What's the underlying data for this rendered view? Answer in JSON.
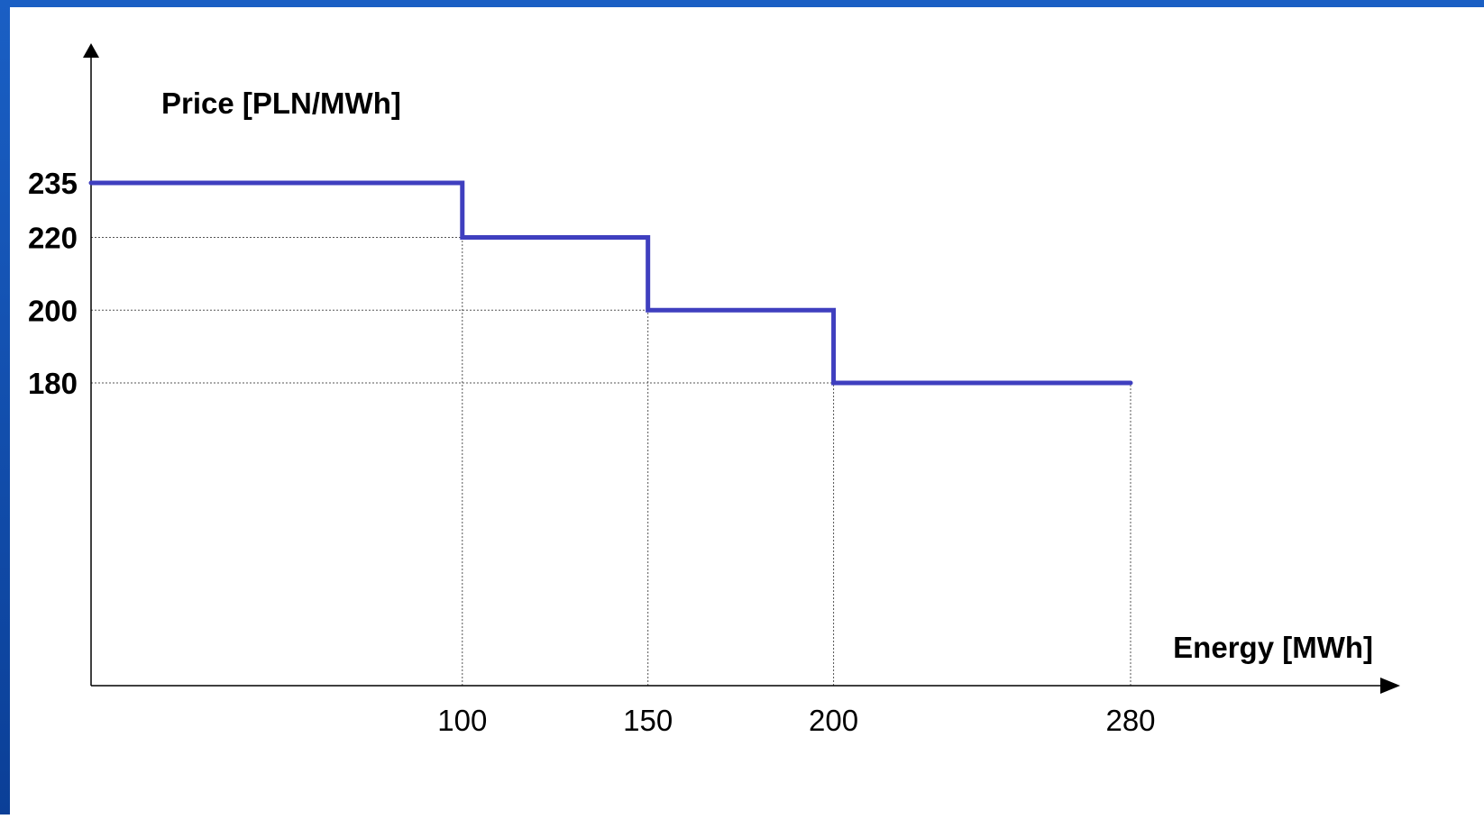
{
  "colors": {
    "frame": "#1554b8",
    "background": "#ffffff",
    "step_line": "#3f3fbf",
    "axis": "#000000",
    "grid": "#555555"
  },
  "chart_data": {
    "type": "line",
    "step": true,
    "title": "",
    "ylabel": "Price [PLN/MWh]",
    "xlabel": "Energy [MWh]",
    "xlim": [
      0,
      330
    ],
    "ylim": [
      0,
      255
    ],
    "x_ticks": [
      100,
      150,
      200,
      280
    ],
    "y_ticks": [
      235,
      220,
      200,
      180
    ],
    "grid": "dotted guide lines at tick values",
    "series": [
      {
        "points": [
          {
            "x": 0,
            "y": 235
          },
          {
            "x": 100,
            "y": 235
          },
          {
            "x": 100,
            "y": 220
          },
          {
            "x": 150,
            "y": 220
          },
          {
            "x": 150,
            "y": 200
          },
          {
            "x": 200,
            "y": 200
          },
          {
            "x": 200,
            "y": 180
          },
          {
            "x": 280,
            "y": 180
          }
        ]
      }
    ]
  }
}
